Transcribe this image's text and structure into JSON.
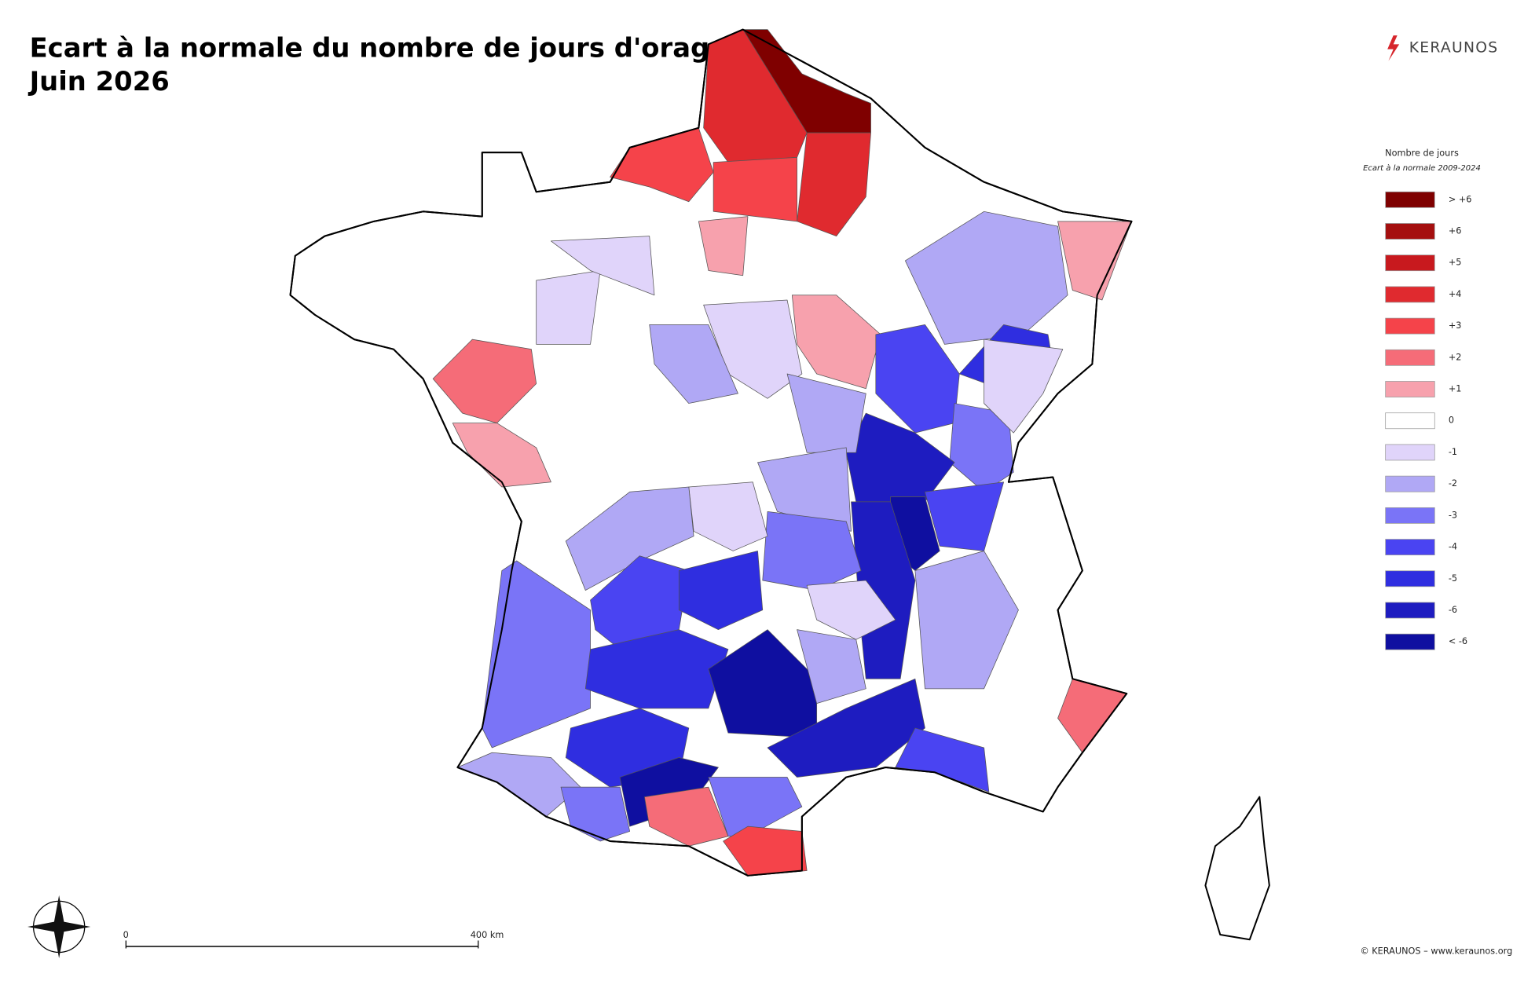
{
  "header": {
    "title_line1": "Ecart à la normale du nombre de jours d'orage",
    "title_line2": "Juin 2026"
  },
  "logo": "KERAUNOS",
  "legend": {
    "title": "Nombre de jours",
    "subtitle": "Ecart à la normale 2009-2024",
    "classes": [
      {
        "value": 7,
        "label": "> +6",
        "color": "#7f0000"
      },
      {
        "value": 6,
        "label": "+6",
        "color": "#a50f0f"
      },
      {
        "value": 5,
        "label": "+5",
        "color": "#c8191e"
      },
      {
        "value": 4,
        "label": "+4",
        "color": "#e02a2f"
      },
      {
        "value": 3,
        "label": "+3",
        "color": "#f5434a"
      },
      {
        "value": 2,
        "label": "+2",
        "color": "#f56c78"
      },
      {
        "value": 1,
        "label": "+1",
        "color": "#f7a1ad"
      },
      {
        "value": 0,
        "color": "#ffffff"
      },
      {
        "value": -1,
        "color": "#e0d4fa"
      },
      {
        "value": -2,
        "color": "#b0a8f5"
      },
      {
        "value": -3,
        "color": "#7a74f7"
      },
      {
        "value": -4,
        "color": "#4a44f2"
      },
      {
        "value": -5,
        "color": "#2f2ee0"
      },
      {
        "value": -6,
        "color": "#1e1cc0"
      },
      {
        "value": -7,
        "label": "< -6",
        "color": "#0f0fa0"
      }
    ]
  },
  "scale_bar": {
    "start": 0,
    "end_label": "400 km"
  },
  "copyright": "© KERAUNOS – www.keraunos.org",
  "map": {
    "region_values": [
      7,
      4,
      3,
      4,
      3,
      1,
      1,
      1,
      2,
      1,
      -2,
      -4,
      -5,
      -3,
      -6,
      -7,
      -4,
      -6,
      -2,
      -1,
      -2,
      -2,
      -3,
      -1,
      -1,
      -2,
      -3,
      -4,
      -5,
      -5,
      -7,
      -2,
      -6,
      -4,
      -5,
      -7,
      -2,
      2,
      -3,
      3,
      2,
      -3,
      -2,
      -1,
      -1,
      -1
    ]
  }
}
